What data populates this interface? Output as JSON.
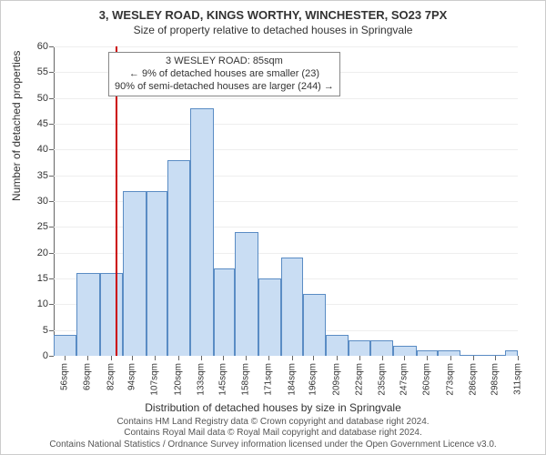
{
  "title_line1": "3, WESLEY ROAD, KINGS WORTHY, WINCHESTER, SO23 7PX",
  "title_line2": "Size of property relative to detached houses in Springvale",
  "yaxis_label": "Number of detached properties",
  "xaxis_label": "Distribution of detached houses by size in Springvale",
  "footer_line1": "Contains HM Land Registry data © Crown copyright and database right 2024.",
  "footer_line2": "Contains Royal Mail data © Royal Mail copyright and database right 2024.",
  "footer_line3": "Contains National Statistics / Ordnance Survey information licensed under the Open Government Licence v3.0.",
  "annotation": {
    "line1": "3 WESLEY ROAD: 85sqm",
    "line2": "← 9% of detached houses are smaller (23)",
    "line3": "90% of semi-detached houses are larger (244) →"
  },
  "chart": {
    "type": "histogram",
    "ylim": [
      0,
      60
    ],
    "ytick_step": 5,
    "xtick_labels": [
      "56sqm",
      "69sqm",
      "82sqm",
      "94sqm",
      "107sqm",
      "120sqm",
      "133sqm",
      "145sqm",
      "158sqm",
      "171sqm",
      "184sqm",
      "196sqm",
      "209sqm",
      "222sqm",
      "235sqm",
      "247sqm",
      "260sqm",
      "273sqm",
      "286sqm",
      "298sqm",
      "311sqm"
    ],
    "x_range": [
      50,
      311
    ],
    "bin_width_sqm": 13,
    "bar_color": "#c9ddf3",
    "bar_border": "#5a8cc4",
    "refline_x_sqm": 85,
    "refline_color": "#cc0000",
    "background": "#ffffff",
    "grid_color": "#eeeeee",
    "axis_color": "#666666",
    "tick_font_size": 11,
    "title_font_size": 13,
    "label_font_size": 12,
    "bars": [
      {
        "x0": 50,
        "x1": 63,
        "value": 4
      },
      {
        "x0": 63,
        "x1": 76,
        "value": 16
      },
      {
        "x0": 76,
        "x1": 89,
        "value": 16
      },
      {
        "x0": 89,
        "x1": 102,
        "value": 32
      },
      {
        "x0": 102,
        "x1": 114,
        "value": 32
      },
      {
        "x0": 114,
        "x1": 127,
        "value": 38
      },
      {
        "x0": 127,
        "x1": 140,
        "value": 48
      },
      {
        "x0": 140,
        "x1": 152,
        "value": 17
      },
      {
        "x0": 152,
        "x1": 165,
        "value": 24
      },
      {
        "x0": 165,
        "x1": 178,
        "value": 15
      },
      {
        "x0": 178,
        "x1": 190,
        "value": 19
      },
      {
        "x0": 190,
        "x1": 203,
        "value": 12
      },
      {
        "x0": 203,
        "x1": 216,
        "value": 4
      },
      {
        "x0": 216,
        "x1": 228,
        "value": 3
      },
      {
        "x0": 228,
        "x1": 241,
        "value": 3
      },
      {
        "x0": 241,
        "x1": 254,
        "value": 2
      },
      {
        "x0": 254,
        "x1": 266,
        "value": 1
      },
      {
        "x0": 266,
        "x1": 279,
        "value": 1
      },
      {
        "x0": 279,
        "x1": 292,
        "value": 0
      },
      {
        "x0": 292,
        "x1": 304,
        "value": 0
      },
      {
        "x0": 304,
        "x1": 311,
        "value": 1
      }
    ]
  }
}
